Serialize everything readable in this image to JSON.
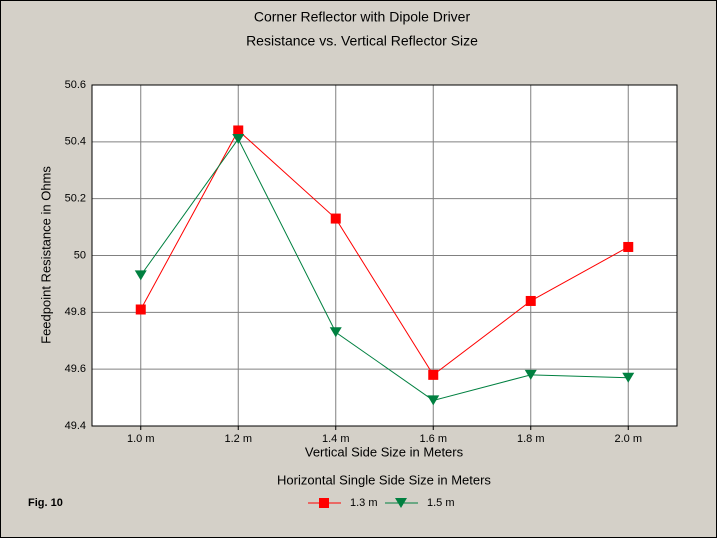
{
  "chart_data": {
    "type": "line",
    "title": "Corner Reflector with Dipole Driver",
    "subtitle": "Resistance vs. Vertical Reflector Size",
    "x_label": "Vertical Side Size in Meters",
    "y_label": "Feedpoint Resistance in Ohms",
    "legend_title": "Horizontal Single Side Size in Meters",
    "annotation": "Fig. 10",
    "categories": [
      "1.0 m",
      "1.2 m",
      "1.4 m",
      "1.6 m",
      "1.8 m",
      "2.0 m"
    ],
    "series": [
      {
        "name": "1.3 m",
        "color": "#ff0000",
        "marker": "square",
        "values": [
          49.81,
          50.44,
          50.13,
          49.58,
          49.84,
          50.03
        ]
      },
      {
        "name": "1.5 m",
        "color": "#008040",
        "marker": "triangle-down",
        "values": [
          49.93,
          50.41,
          49.73,
          49.49,
          49.58,
          49.57
        ]
      }
    ],
    "ylim": [
      49.4,
      50.6
    ],
    "yticks": [
      49.4,
      49.6,
      49.8,
      50,
      50.2,
      50.4,
      50.6
    ],
    "grid": true,
    "legend": "bottom"
  }
}
